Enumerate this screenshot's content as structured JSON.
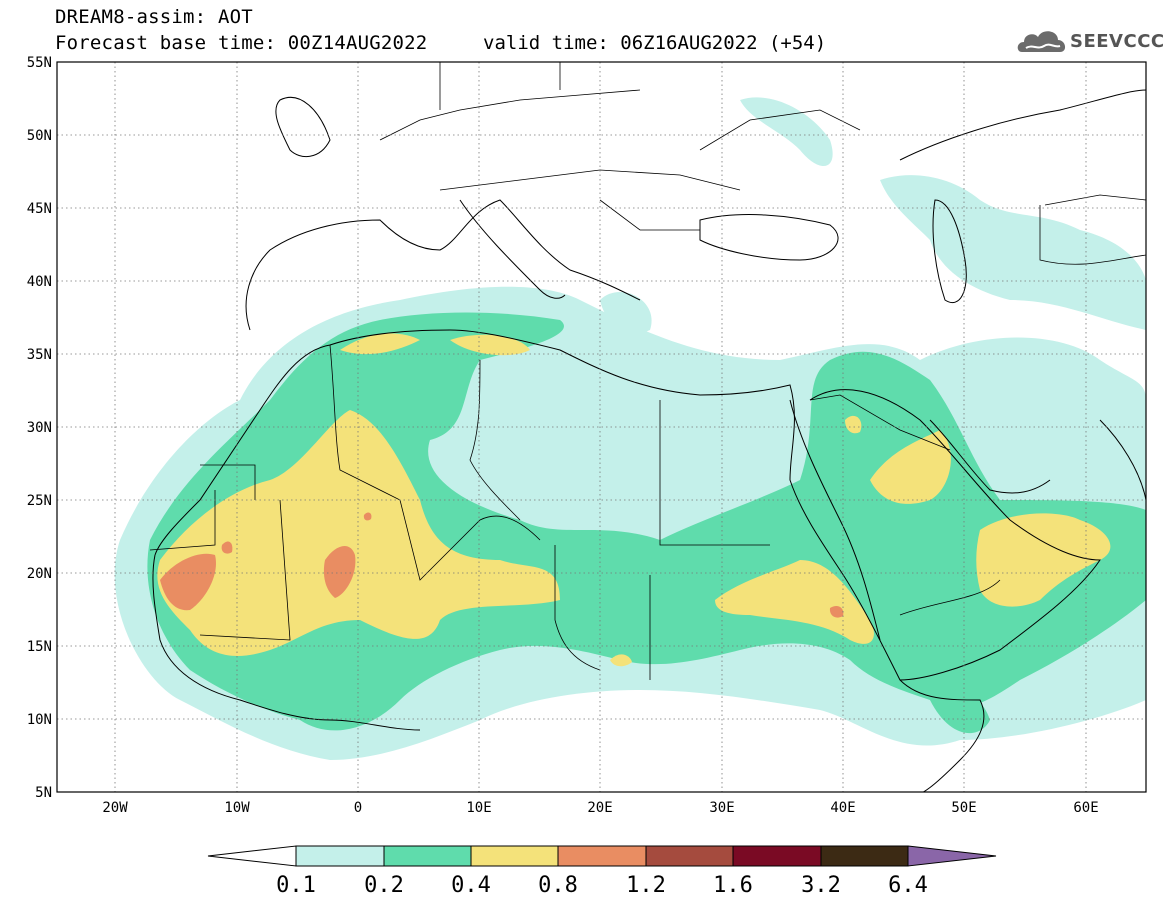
{
  "header": {
    "title_line1": "DREAM8-assim: AOT",
    "title_line2": "Forecast base time: 00Z14AUG2022",
    "valid_time": "valid time: 06Z16AUG2022 (+54)",
    "logo_text": "SEEVCCC"
  },
  "map": {
    "lon_labels": [
      "20W",
      "10W",
      "0",
      "10E",
      "20E",
      "30E",
      "40E",
      "50E",
      "60E"
    ],
    "lat_labels": [
      "55N",
      "50N",
      "45N",
      "40N",
      "35N",
      "30N",
      "25N",
      "20N",
      "15N",
      "10N",
      "5N"
    ]
  },
  "colorbar": {
    "labels": [
      "0.1",
      "0.2",
      "0.4",
      "0.8",
      "1.2",
      "1.6",
      "3.2",
      "6.4"
    ],
    "colors": [
      "#c4f0ea",
      "#5fdcac",
      "#f4e27a",
      "#e98d62",
      "#a54b3e",
      "#7a0a24",
      "#3c2a14",
      "#8a66a8"
    ]
  }
}
